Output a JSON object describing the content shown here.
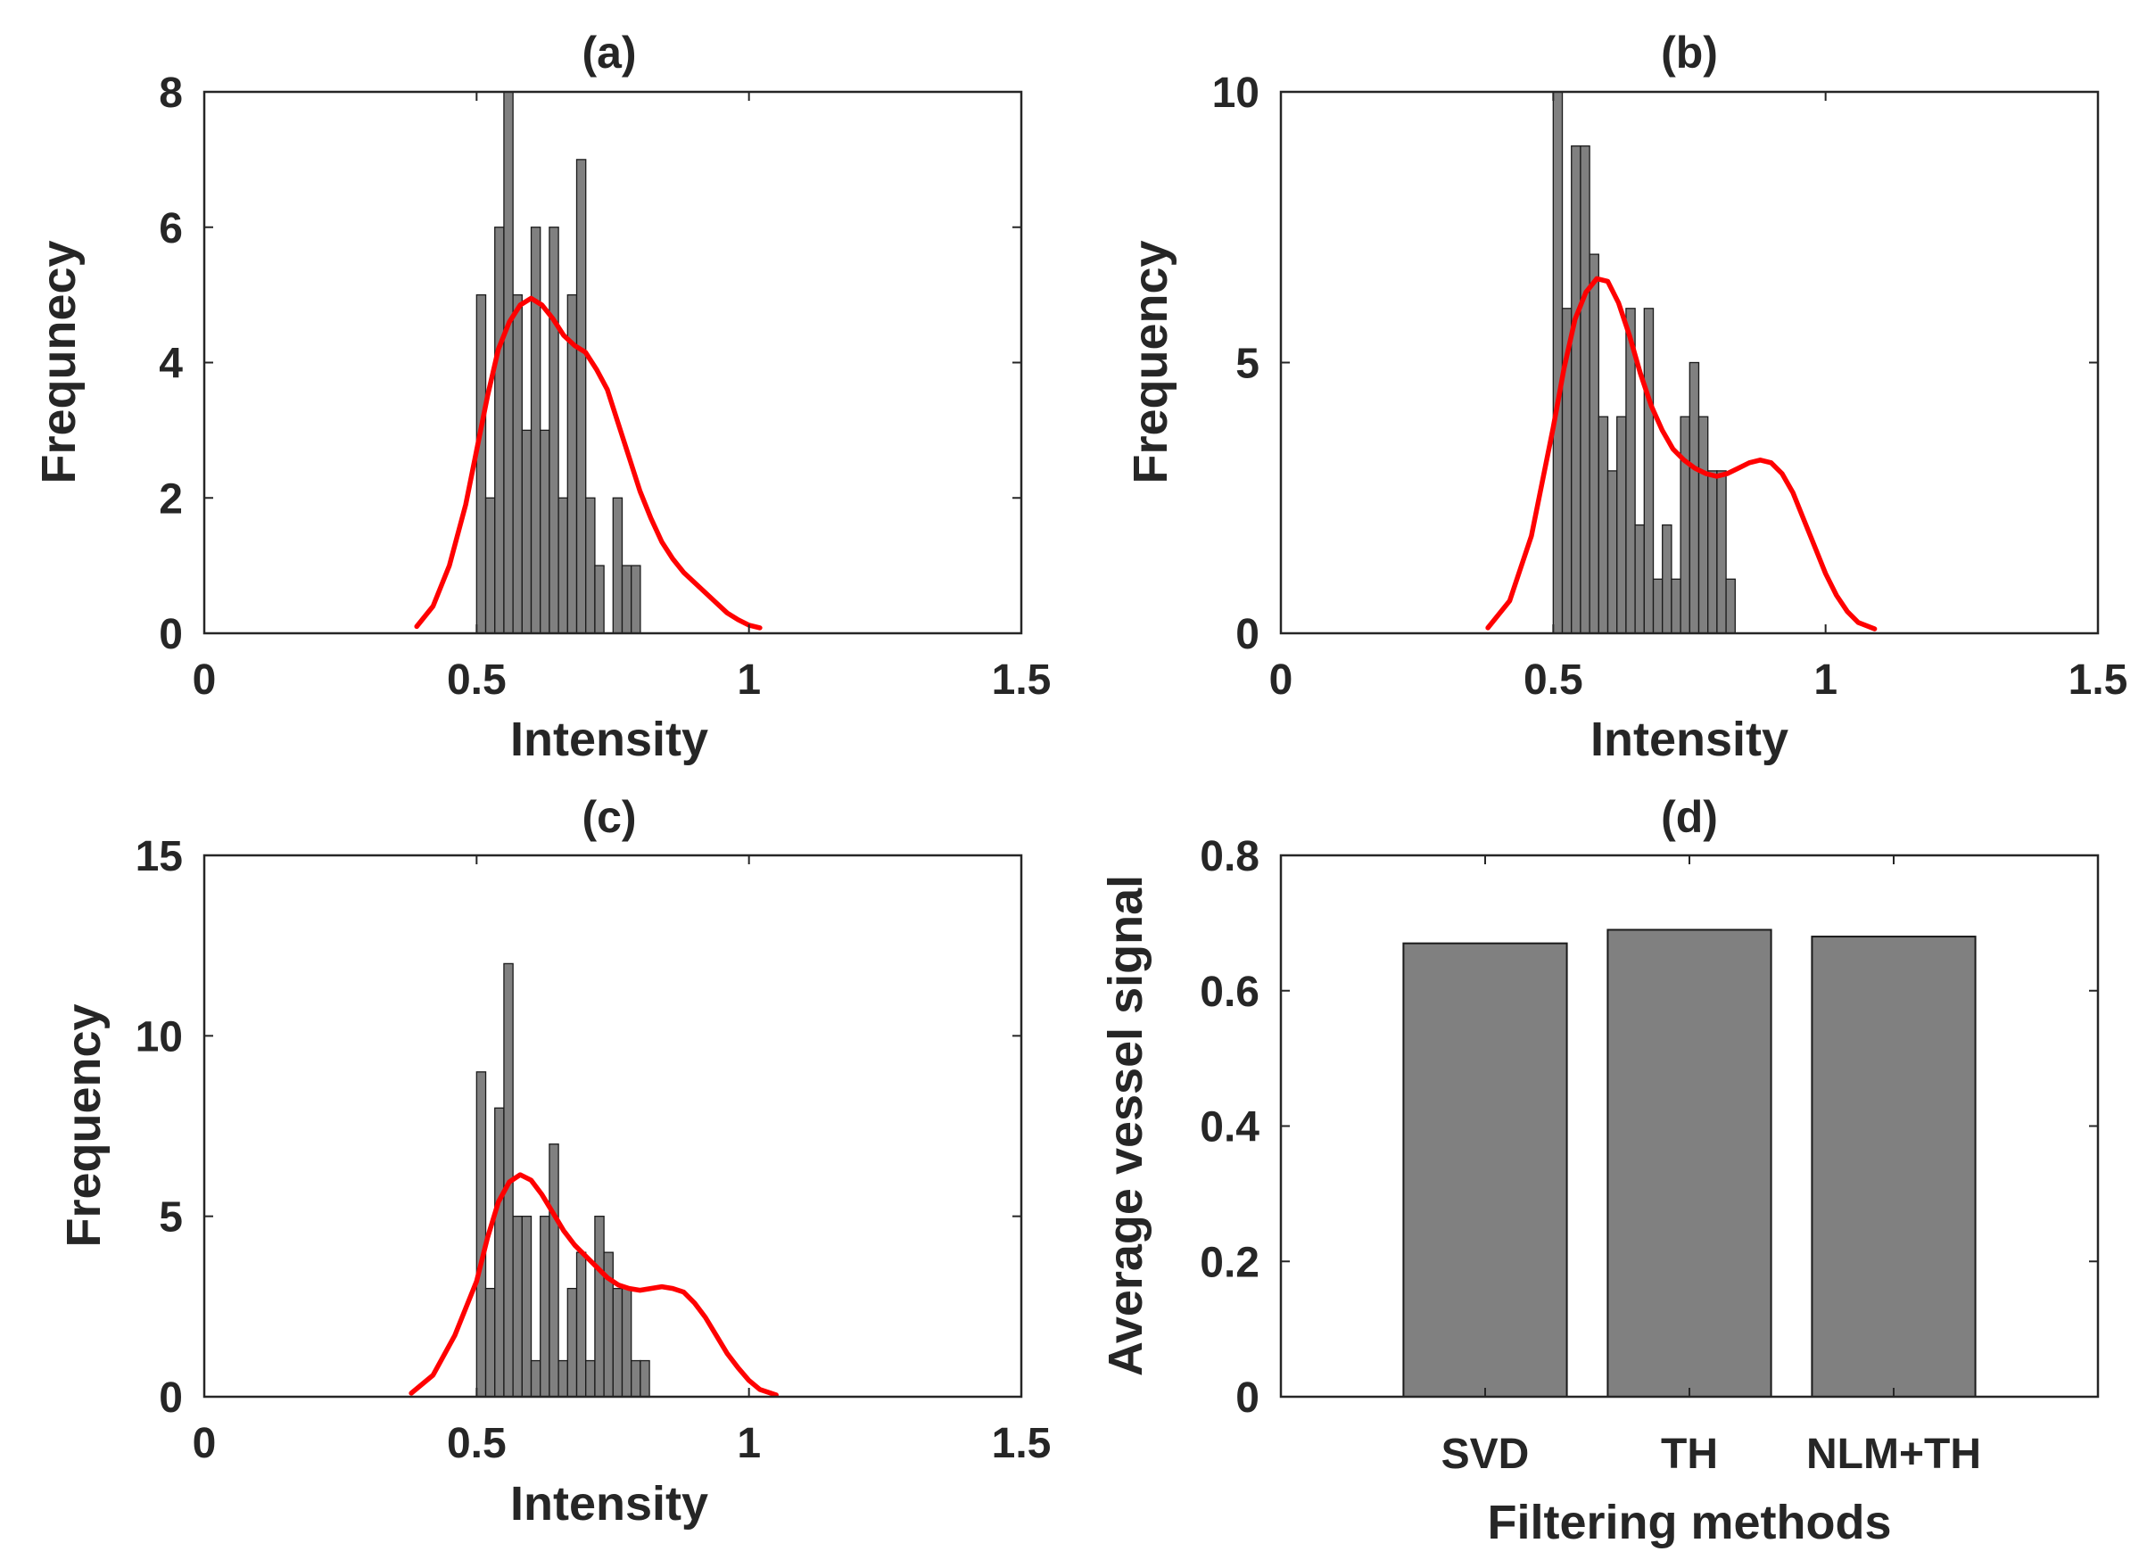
{
  "figure": {
    "bar_color": "#808080",
    "bar_edge_color": "#1a1a1a",
    "curve_color": "#ff0000",
    "axis_color": "#262626"
  },
  "chart_data": [
    {
      "type": "bar",
      "subtype": "histogram_with_density",
      "title": "(a)",
      "xlabel": "Intensity",
      "ylabel": "Frequnecy",
      "xlim": [
        0,
        1.5
      ],
      "ylim": [
        0,
        8
      ],
      "xticks": [
        0,
        0.5,
        1,
        1.5
      ],
      "xtick_labels": [
        "0",
        "0.5",
        "1",
        "1.5"
      ],
      "yticks": [
        0,
        2,
        4,
        6,
        8
      ],
      "ytick_labels": [
        "0",
        "2",
        "4",
        "6",
        "8"
      ],
      "bin_start": 0.5,
      "bin_width": 0.0167,
      "counts": [
        5,
        2,
        6,
        8,
        5,
        3,
        6,
        3,
        6,
        2,
        5,
        7,
        2,
        1,
        0,
        2,
        1,
        1
      ],
      "curve": {
        "x": [
          0.39,
          0.42,
          0.45,
          0.48,
          0.5,
          0.52,
          0.54,
          0.56,
          0.58,
          0.6,
          0.62,
          0.64,
          0.66,
          0.68,
          0.7,
          0.72,
          0.74,
          0.76,
          0.78,
          0.8,
          0.82,
          0.84,
          0.86,
          0.88,
          0.9,
          0.92,
          0.94,
          0.96,
          0.98,
          1.0,
          1.02
        ],
        "y": [
          0.1,
          0.4,
          1.0,
          1.9,
          2.7,
          3.5,
          4.2,
          4.6,
          4.85,
          4.95,
          4.85,
          4.65,
          4.4,
          4.25,
          4.15,
          3.9,
          3.6,
          3.1,
          2.6,
          2.1,
          1.7,
          1.35,
          1.1,
          0.9,
          0.75,
          0.6,
          0.45,
          0.3,
          0.2,
          0.12,
          0.08
        ]
      }
    },
    {
      "type": "bar",
      "subtype": "histogram_with_density",
      "title": "(b)",
      "xlabel": "Intensity",
      "ylabel": "Frequency",
      "xlim": [
        0,
        1.5
      ],
      "ylim": [
        0,
        10
      ],
      "xticks": [
        0,
        0.5,
        1,
        1.5
      ],
      "xtick_labels": [
        "0",
        "0.5",
        "1",
        "1.5"
      ],
      "yticks": [
        0,
        5,
        10
      ],
      "ytick_labels": [
        "0",
        "5",
        "10"
      ],
      "bin_start": 0.5,
      "bin_width": 0.0167,
      "counts": [
        10,
        6,
        9,
        9,
        7,
        4,
        3,
        4,
        6,
        2,
        6,
        1,
        2,
        1,
        4,
        5,
        4,
        3,
        3,
        1
      ],
      "curve": {
        "x": [
          0.38,
          0.42,
          0.46,
          0.5,
          0.52,
          0.54,
          0.56,
          0.58,
          0.6,
          0.62,
          0.64,
          0.66,
          0.68,
          0.7,
          0.72,
          0.74,
          0.76,
          0.78,
          0.8,
          0.82,
          0.84,
          0.86,
          0.88,
          0.9,
          0.92,
          0.94,
          0.96,
          0.98,
          1.0,
          1.02,
          1.04,
          1.06,
          1.09
        ],
        "y": [
          0.1,
          0.6,
          1.8,
          3.8,
          4.9,
          5.8,
          6.3,
          6.55,
          6.5,
          6.1,
          5.5,
          4.8,
          4.2,
          3.75,
          3.4,
          3.2,
          3.05,
          2.95,
          2.9,
          2.95,
          3.05,
          3.15,
          3.2,
          3.15,
          2.95,
          2.6,
          2.1,
          1.6,
          1.1,
          0.7,
          0.4,
          0.2,
          0.08
        ]
      }
    },
    {
      "type": "bar",
      "subtype": "histogram_with_density",
      "title": "(c)",
      "xlabel": "Intensity",
      "ylabel": "Frequency",
      "xlim": [
        0,
        1.5
      ],
      "ylim": [
        0,
        15
      ],
      "xticks": [
        0,
        0.5,
        1,
        1.5
      ],
      "xtick_labels": [
        "0",
        "0.5",
        "1",
        "1.5"
      ],
      "yticks": [
        0,
        5,
        10,
        15
      ],
      "ytick_labels": [
        "0",
        "5",
        "10",
        "15"
      ],
      "bin_start": 0.5,
      "bin_width": 0.0167,
      "counts": [
        9,
        3,
        8,
        12,
        5,
        5,
        1,
        5,
        7,
        1,
        3,
        4,
        1,
        5,
        4,
        3,
        3,
        1,
        1
      ],
      "curve": {
        "x": [
          0.38,
          0.42,
          0.46,
          0.5,
          0.52,
          0.54,
          0.56,
          0.58,
          0.6,
          0.62,
          0.64,
          0.66,
          0.68,
          0.7,
          0.72,
          0.74,
          0.76,
          0.78,
          0.8,
          0.82,
          0.84,
          0.86,
          0.88,
          0.9,
          0.92,
          0.94,
          0.96,
          0.98,
          1.0,
          1.02,
          1.05
        ],
        "y": [
          0.1,
          0.6,
          1.7,
          3.2,
          4.4,
          5.4,
          5.95,
          6.15,
          6.0,
          5.6,
          5.1,
          4.6,
          4.2,
          3.9,
          3.6,
          3.3,
          3.1,
          3.0,
          2.95,
          3.0,
          3.05,
          3.0,
          2.9,
          2.6,
          2.2,
          1.7,
          1.2,
          0.8,
          0.45,
          0.2,
          0.05
        ]
      }
    },
    {
      "type": "bar",
      "title": "(d)",
      "xlabel": "Filtering methods",
      "ylabel": "Average vessel signal",
      "categories": [
        "SVD",
        "TH",
        "NLM+TH"
      ],
      "values": [
        0.67,
        0.69,
        0.68
      ],
      "ylim": [
        0,
        0.8
      ],
      "yticks": [
        0,
        0.2,
        0.4,
        0.6,
        0.8
      ],
      "ytick_labels": [
        "0",
        "0.2",
        "0.4",
        "0.6",
        "0.8"
      ]
    }
  ]
}
